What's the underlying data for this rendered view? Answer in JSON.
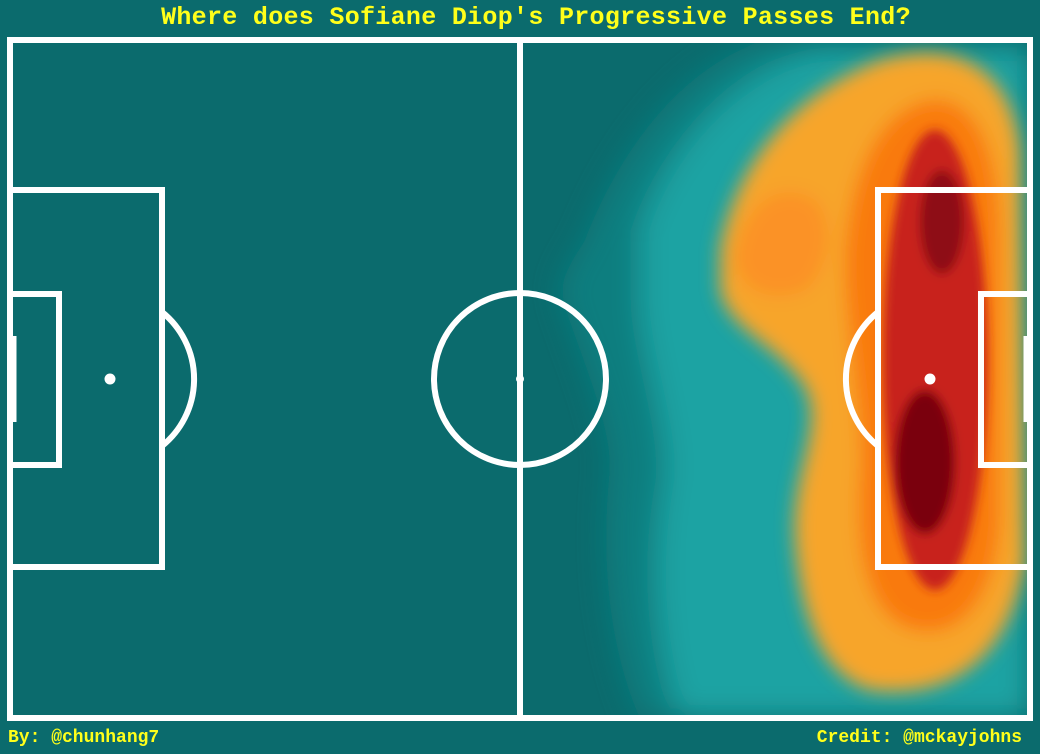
{
  "title": "Where does Sofiane Diop's Progressive Passes End?",
  "footer": {
    "by": "By: @chunhang7",
    "credit": "Credit: @mckayjohns"
  },
  "colors": {
    "background": "#0b6b6d",
    "text": "#ffff1a",
    "lines": "#ffffff",
    "density_low": "#1aa8a8",
    "density_mid": "#f7a52a",
    "density_high": "#7a0010"
  },
  "chart_data": {
    "type": "heatmap",
    "title": "Where does Sofiane Diop's Progressive Passes End?",
    "subject": "Sofiane Diop",
    "measure": "Progressive pass end locations (kernel density)",
    "pitch": {
      "length": 120,
      "width": 80
    },
    "attacking_direction": "left-to-right",
    "grid": false,
    "density_hotspots": [
      {
        "x": 107.8,
        "y": 50.0,
        "intensity": 1.0
      },
      {
        "x": 109.0,
        "y": 21.0,
        "intensity": 0.9
      },
      {
        "x": 108.5,
        "y": 34.0,
        "intensity": 0.75
      },
      {
        "x": 113.0,
        "y": 10.0,
        "intensity": 0.55
      },
      {
        "x": 110.0,
        "y": 66.0,
        "intensity": 0.5
      },
      {
        "x": 92.0,
        "y": 22.0,
        "intensity": 0.45
      },
      {
        "x": 94.5,
        "y": 36.0,
        "intensity": 0.35
      },
      {
        "x": 92.0,
        "y": 68.0,
        "intensity": 0.3
      }
    ]
  }
}
